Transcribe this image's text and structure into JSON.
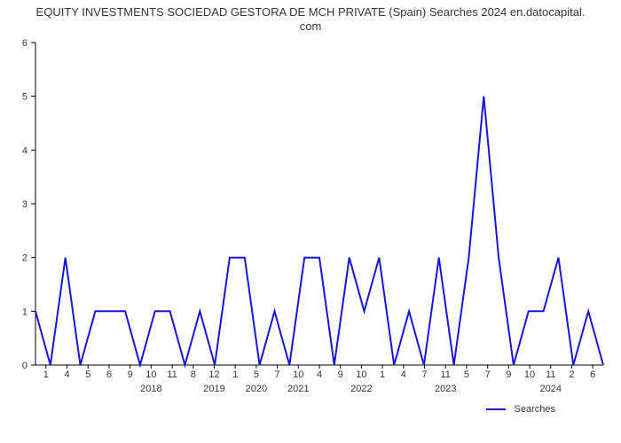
{
  "chart": {
    "type": "line",
    "title_line1": "EQUITY INVESTMENTS SOCIEDAD GESTORA DE MCH PRIVATE (Spain) Searches 2024 en.datocapital.",
    "title_line2": "com",
    "title_fontsize": 13,
    "title_color": "#333333",
    "background_color": "#ffffff",
    "series_name": "Searches",
    "series_color": "#1616d6",
    "line_width": 2,
    "ylim": [
      0,
      6
    ],
    "ytick_step": 1,
    "xtick_labels": [
      "1",
      "4",
      "5",
      "6",
      "9",
      "10",
      "11",
      "8",
      "12",
      "1",
      "5",
      "7",
      "10",
      "4",
      "9",
      "10",
      "1",
      "4",
      "7",
      "11",
      "5",
      "7",
      "9",
      "10",
      "11",
      "2",
      "6"
    ],
    "year_marks": [
      {
        "label": "2018",
        "at_index": 5
      },
      {
        "label": "2019",
        "at_index": 8
      },
      {
        "label": "2020",
        "at_index": 10
      },
      {
        "label": "2021",
        "at_index": 12
      },
      {
        "label": "2022",
        "at_index": 15
      },
      {
        "label": "2023",
        "at_index": 19
      },
      {
        "label": "2024",
        "at_index": 24
      }
    ],
    "values": [
      1,
      0,
      2,
      0,
      1,
      1,
      1,
      0,
      1,
      1,
      0,
      1,
      0,
      2,
      2,
      0,
      1,
      0,
      2,
      2,
      0,
      2,
      1,
      2,
      0,
      1,
      0,
      2,
      0,
      2,
      5,
      2,
      0,
      1,
      1,
      2,
      0,
      1,
      0
    ],
    "axis_color": "#000000",
    "grid": false,
    "legend_label": "Searches",
    "tick_fontsize": 11
  }
}
